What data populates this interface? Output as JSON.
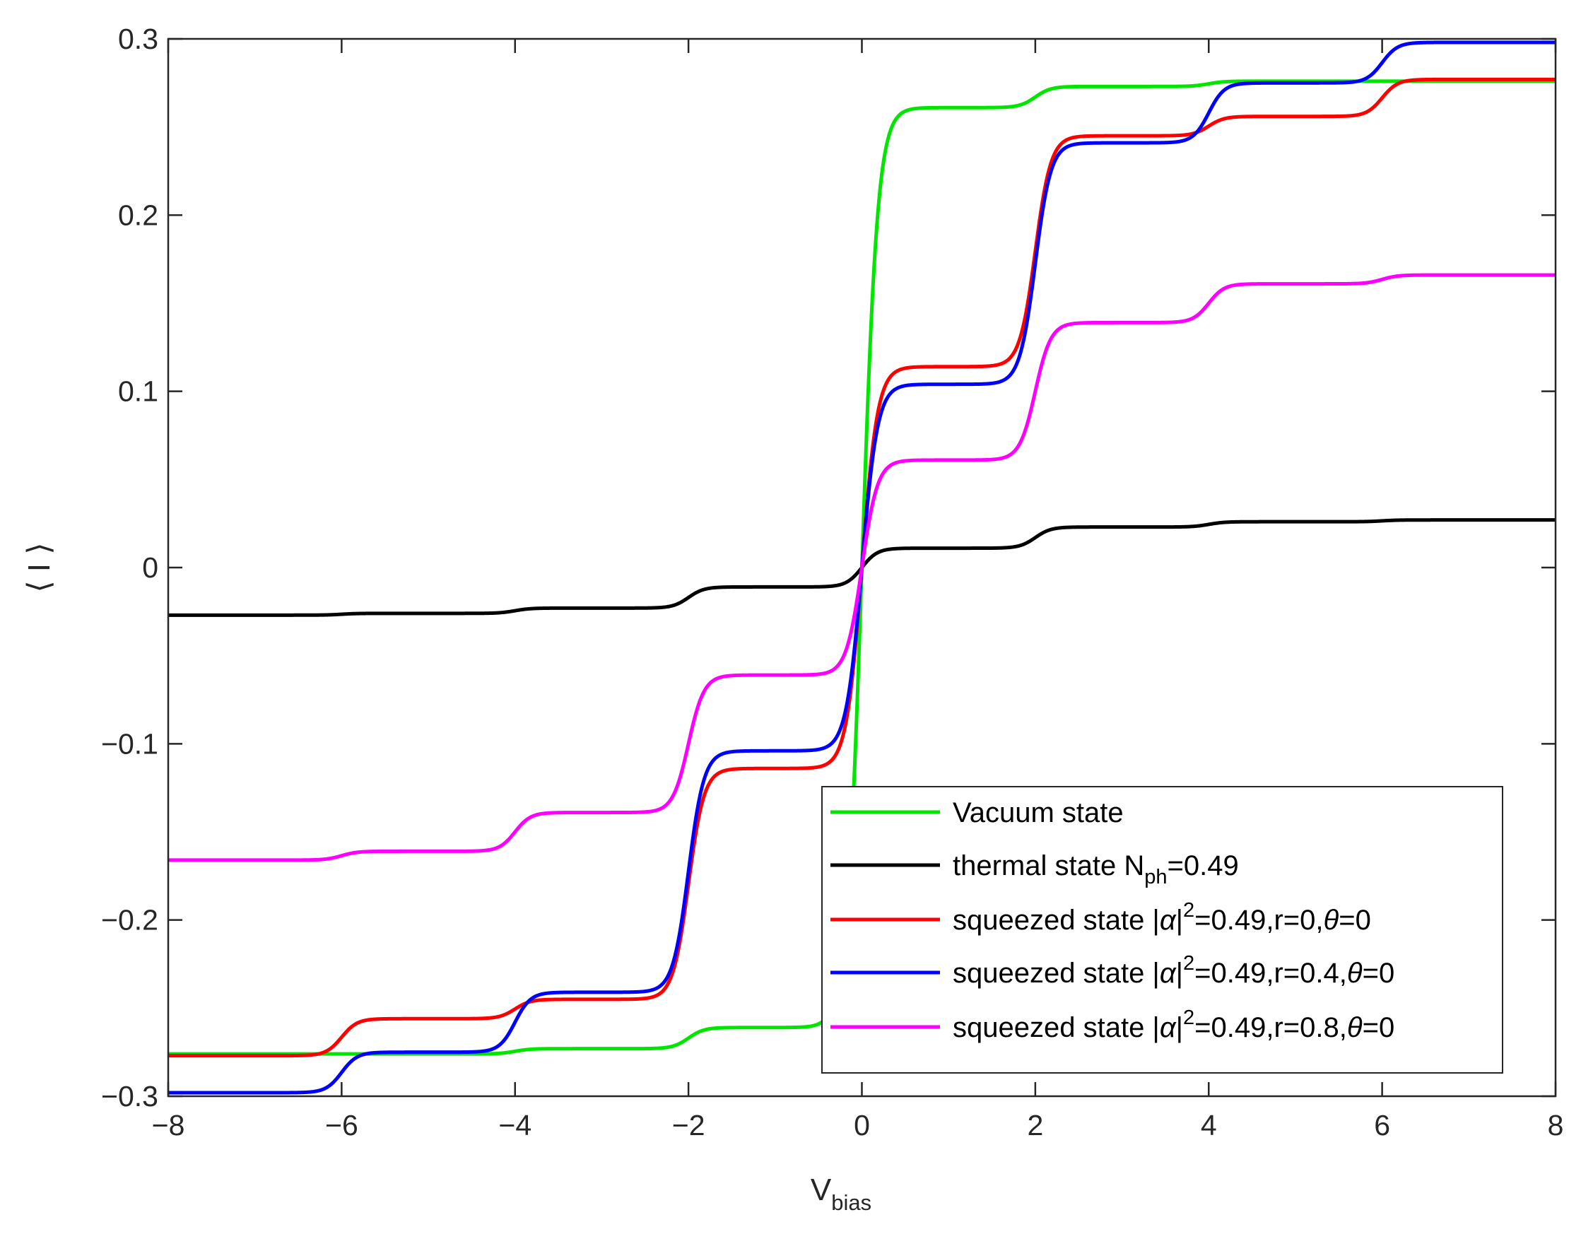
{
  "chart_data": {
    "type": "line",
    "title": "",
    "xlabel": {
      "main": "V",
      "subscript": "bias"
    },
    "ylabel": "⟨ I ⟩",
    "xlim": [
      -8,
      8
    ],
    "ylim": [
      -0.3,
      0.3
    ],
    "xticks": [
      -8,
      -6,
      -4,
      -2,
      0,
      2,
      4,
      6,
      8
    ],
    "xtick_labels": [
      "−8",
      "−6",
      "−4",
      "−2",
      "0",
      "2",
      "4",
      "6",
      "8"
    ],
    "yticks": [
      -0.3,
      -0.2,
      -0.1,
      0,
      0.1,
      0.2,
      0.3
    ],
    "ytick_labels": [
      "−0.3",
      "−0.2",
      "−0.1",
      "0",
      "0.1",
      "0.2",
      "0.3"
    ],
    "grid": false,
    "legend_position": "bottom-right",
    "step_centers": [
      0,
      2,
      4,
      6
    ],
    "series": [
      {
        "name": "Vacuum state",
        "legend": {
          "text": "Vacuum state"
        },
        "color": "#00e600",
        "plateaus": [
          0.0,
          0.261,
          0.273,
          0.276,
          0.276
        ],
        "step_width": 0.09
      },
      {
        "name": "thermal state N_ph=0.49",
        "legend": {
          "text": "thermal state N",
          "sub": "ph",
          "tail": "=0.49"
        },
        "color": "#000000",
        "plateaus": [
          0.0,
          0.011,
          0.023,
          0.026,
          0.027
        ],
        "step_width": 0.09
      },
      {
        "name": "squeezed state |α|^2=0.49,r=0,θ=0",
        "legend": {
          "text": "squeezed state |",
          "greek1": "α",
          "text2": "|",
          "sup": "2",
          "tail": "=0.49,r=0,",
          "greek2": "θ",
          "end": "=0"
        },
        "color": "#ff0000",
        "plateaus": [
          0.0,
          0.114,
          0.245,
          0.256,
          0.277
        ],
        "step_width": 0.09
      },
      {
        "name": "squeezed state |α|^2=0.49,r=0.4,θ=0",
        "legend": {
          "text": "squeezed state |",
          "greek1": "α",
          "text2": "|",
          "sup": "2",
          "tail": "=0.49,r=0.4,",
          "greek2": "θ",
          "end": "=0"
        },
        "color": "#0000ff",
        "plateaus": [
          0.0,
          0.104,
          0.241,
          0.275,
          0.298
        ],
        "step_width": 0.09
      },
      {
        "name": "squeezed state |α|^2=0.49,r=0.8,θ=0",
        "legend": {
          "text": "squeezed state |",
          "greek1": "α",
          "text2": "|",
          "sup": "2",
          "tail": "=0.49,r=0.8,",
          "greek2": "θ",
          "end": "=0"
        },
        "color": "#ff00ff",
        "plateaus": [
          0.0,
          0.061,
          0.139,
          0.161,
          0.166
        ],
        "step_width": 0.09
      }
    ]
  }
}
